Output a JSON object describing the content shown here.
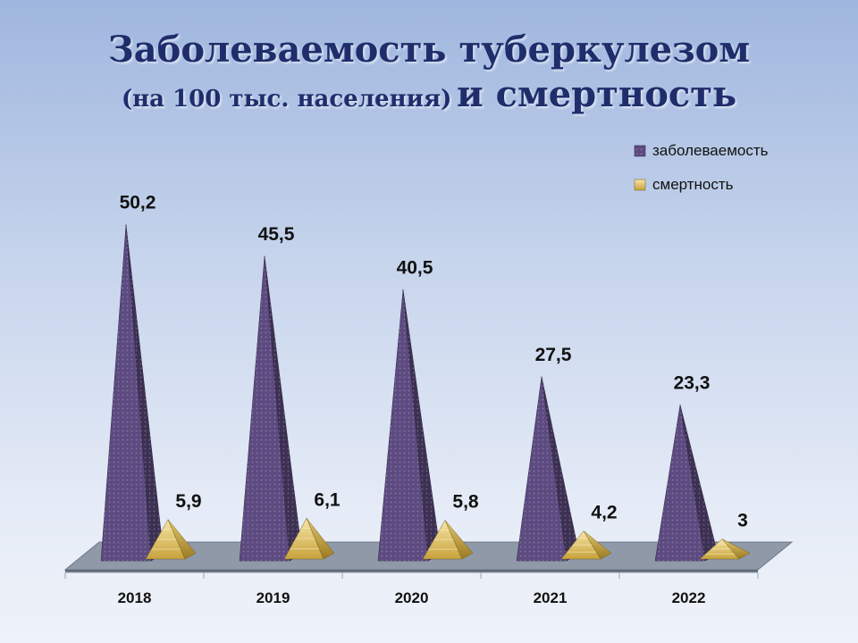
{
  "title": {
    "line1": "Заболеваемость туберкулезом",
    "line2_small": "(на 100 тыс. населения)",
    "line2_big": "и смертность"
  },
  "colors": {
    "morbidity": "#5c4a80",
    "mortality": "#d4b24e",
    "floor": "#8f99a8"
  },
  "chart_data": {
    "type": "bar",
    "categories": [
      "2018",
      "2019",
      "2020",
      "2021",
      "2022"
    ],
    "series": [
      {
        "name": "заболеваемость",
        "values": [
          50.2,
          45.5,
          40.5,
          27.5,
          23.3
        ],
        "labels": [
          "50,2",
          "45,5",
          "40,5",
          "27,5",
          "23,3"
        ]
      },
      {
        "name": "смертность",
        "values": [
          5.9,
          6.1,
          5.8,
          4.2,
          3
        ],
        "labels": [
          "5,9",
          "6,1",
          "5,8",
          "4,2",
          "3"
        ]
      }
    ],
    "legend_position": "top-right",
    "grid": false,
    "data_labels": true,
    "shape": "3d-pyramid"
  }
}
